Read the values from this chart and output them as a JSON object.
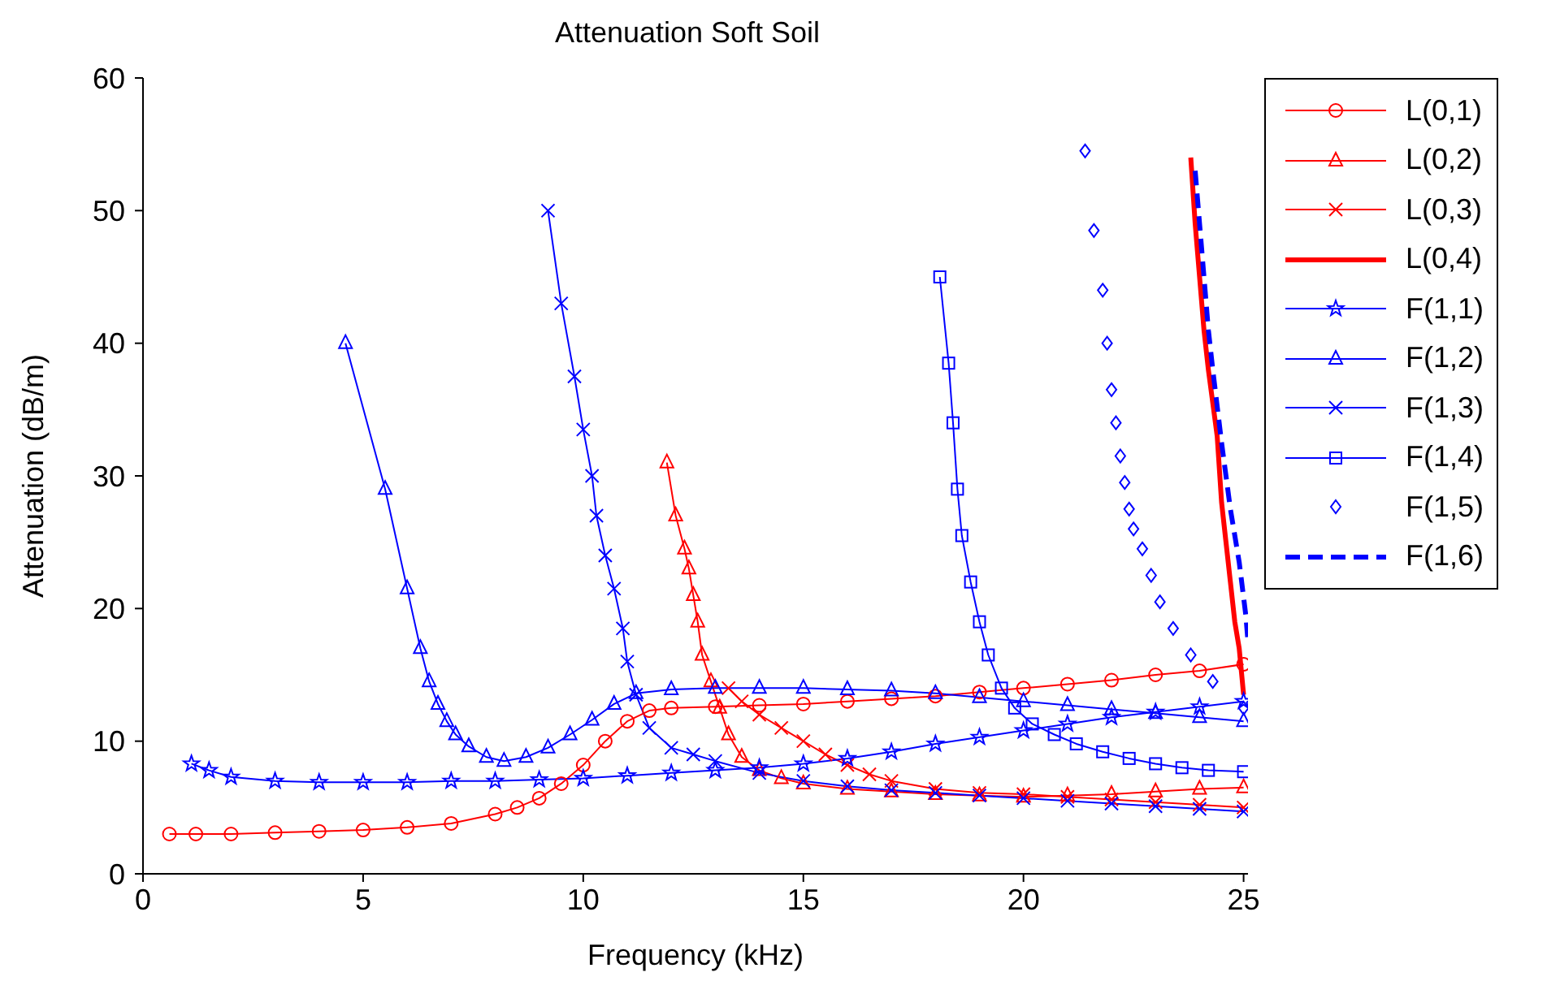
{
  "chart_data": {
    "type": "line",
    "title": "Attenuation Soft Soil",
    "xlabel": "Frequency (kHz)",
    "ylabel": "Attenuation (dB/m)",
    "xlim": [
      0,
      25.1
    ],
    "ylim": [
      0,
      60
    ],
    "xticks": [
      0,
      5,
      10,
      15,
      20,
      25
    ],
    "yticks": [
      0,
      10,
      20,
      30,
      40,
      50,
      60
    ],
    "grid": false,
    "legend": "right",
    "series": [
      {
        "name": "L(0,1)",
        "color": "#ff0000",
        "marker": "circle",
        "line_style": "solid",
        "x": [
          0.6,
          1.2,
          2,
          3,
          4,
          5,
          6,
          7,
          8,
          8.5,
          9,
          9.5,
          10,
          10.5,
          11,
          11.5,
          12,
          13,
          14,
          15,
          16,
          17,
          18,
          19,
          20,
          21,
          22,
          23,
          24,
          25
        ],
        "values": [
          3,
          3,
          3,
          3.1,
          3.2,
          3.3,
          3.5,
          3.8,
          4.5,
          5,
          5.7,
          6.8,
          8.2,
          10,
          11.5,
          12.3,
          12.5,
          12.6,
          12.7,
          12.8,
          13,
          13.2,
          13.4,
          13.7,
          14,
          14.3,
          14.6,
          15,
          15.3,
          15.8
        ]
      },
      {
        "name": "L(0,2)",
        "color": "#ff0000",
        "marker": "triangle",
        "line_style": "solid",
        "x": [
          11.9,
          12.1,
          12.3,
          12.4,
          12.5,
          12.6,
          12.7,
          12.9,
          13.1,
          13.3,
          13.6,
          14,
          14.5,
          15,
          16,
          17,
          18,
          19,
          20,
          21,
          22,
          23,
          24,
          25
        ],
        "values": [
          31,
          27,
          24.5,
          23,
          21,
          19,
          16.5,
          14.5,
          12.5,
          10.5,
          8.8,
          7.8,
          7.2,
          6.8,
          6.4,
          6.2,
          6,
          5.9,
          5.8,
          5.9,
          6,
          6.2,
          6.4,
          6.5
        ]
      },
      {
        "name": "L(0,3)",
        "color": "#ff0000",
        "marker": "cross",
        "line_style": "solid",
        "x": [
          13.3,
          13.6,
          14,
          14.5,
          15,
          15.5,
          16,
          16.5,
          17,
          18,
          19,
          20,
          21,
          22,
          23,
          24,
          25
        ],
        "values": [
          14,
          13,
          12,
          11,
          10,
          9,
          8.2,
          7.5,
          7,
          6.4,
          6.1,
          6,
          5.8,
          5.6,
          5.4,
          5.2,
          5
        ]
      },
      {
        "name": "L(0,4)",
        "color": "#ff0000",
        "marker": "none",
        "line_style": "solid",
        "x": [
          23.8,
          23.9,
          24,
          24.1,
          24.2,
          24.4,
          24.5,
          24.6,
          24.7,
          24.8,
          24.9,
          25
        ],
        "values": [
          54,
          49,
          45,
          41,
          38,
          33,
          28,
          25,
          22,
          19,
          17,
          13.5
        ]
      },
      {
        "name": "F(1,1)",
        "color": "#0000ff",
        "marker": "star",
        "line_style": "solid",
        "x": [
          1.1,
          1.5,
          2,
          3,
          4,
          5,
          6,
          7,
          8,
          9,
          10,
          11,
          12,
          13,
          14,
          15,
          16,
          17,
          18,
          19,
          20,
          21,
          22,
          23,
          24,
          25
        ],
        "values": [
          8.3,
          7.8,
          7.3,
          7,
          6.9,
          6.9,
          6.9,
          7,
          7,
          7.1,
          7.2,
          7.4,
          7.6,
          7.8,
          8,
          8.3,
          8.7,
          9.2,
          9.8,
          10.3,
          10.8,
          11.3,
          11.8,
          12.2,
          12.6,
          13
        ]
      },
      {
        "name": "F(1,2)",
        "color": "#0000ff",
        "marker": "triangle",
        "line_style": "solid",
        "x": [
          4.6,
          5.5,
          6,
          6.3,
          6.5,
          6.7,
          6.9,
          7.1,
          7.4,
          7.8,
          8.2,
          8.7,
          9.2,
          9.7,
          10.2,
          10.7,
          11.2,
          12,
          13,
          14,
          15,
          16,
          17,
          18,
          19,
          20,
          21,
          22,
          23,
          24,
          25
        ],
        "values": [
          40,
          29,
          21.5,
          17,
          14.5,
          12.8,
          11.5,
          10.5,
          9.6,
          8.8,
          8.5,
          8.8,
          9.5,
          10.5,
          11.6,
          12.8,
          13.6,
          13.9,
          14,
          14,
          14,
          13.9,
          13.8,
          13.6,
          13.3,
          13,
          12.7,
          12.4,
          12.1,
          11.8,
          11.5
        ]
      },
      {
        "name": "F(1,3)",
        "color": "#0000ff",
        "marker": "cross",
        "line_style": "solid",
        "x": [
          9.2,
          9.5,
          9.8,
          10,
          10.2,
          10.3,
          10.5,
          10.7,
          10.9,
          11,
          11.2,
          11.5,
          12,
          12.5,
          13,
          14,
          15,
          16,
          17,
          18,
          19,
          20,
          21,
          22,
          23,
          24,
          25
        ],
        "values": [
          50,
          43,
          37.5,
          33.5,
          30,
          27,
          24,
          21.5,
          18.5,
          16,
          13.5,
          11,
          9.5,
          9,
          8.5,
          7.6,
          7,
          6.6,
          6.3,
          6.1,
          5.9,
          5.7,
          5.5,
          5.3,
          5.1,
          4.9,
          4.7
        ]
      },
      {
        "name": "F(1,4)",
        "color": "#0000ff",
        "marker": "square",
        "line_style": "solid",
        "x": [
          18.1,
          18.3,
          18.4,
          18.5,
          18.6,
          18.8,
          19,
          19.2,
          19.5,
          19.8,
          20.2,
          20.7,
          21.2,
          21.8,
          22.4,
          23,
          23.6,
          24.2,
          25
        ],
        "values": [
          45,
          38.5,
          34,
          29,
          25.5,
          22,
          19,
          16.5,
          14,
          12.5,
          11.3,
          10.5,
          9.8,
          9.2,
          8.7,
          8.3,
          8,
          7.8,
          7.7
        ]
      },
      {
        "name": "F(1,5)",
        "type": "scatter",
        "color": "#0000ff",
        "marker": "diamond",
        "x": [
          21.4,
          21.6,
          21.8,
          21.9,
          22,
          22.1,
          22.2,
          22.3,
          22.4,
          22.5,
          22.7,
          22.9,
          23.1,
          23.4,
          23.8,
          24.3,
          25
        ],
        "values": [
          54.5,
          48.5,
          44,
          40,
          36.5,
          34,
          31.5,
          29.5,
          27.5,
          26,
          24.5,
          22.5,
          20.5,
          18.5,
          16.5,
          14.5,
          12.5
        ]
      },
      {
        "name": "F(1,6)",
        "color": "#0000ff",
        "marker": "none",
        "line_style": "dashed",
        "x": [
          23.9,
          24,
          24.1,
          24.2,
          24.3,
          24.5,
          24.7,
          24.9,
          25.05,
          25.1
        ],
        "values": [
          53,
          49,
          45,
          41,
          38,
          32.5,
          27.5,
          23.5,
          19.5,
          17.5
        ]
      }
    ]
  }
}
